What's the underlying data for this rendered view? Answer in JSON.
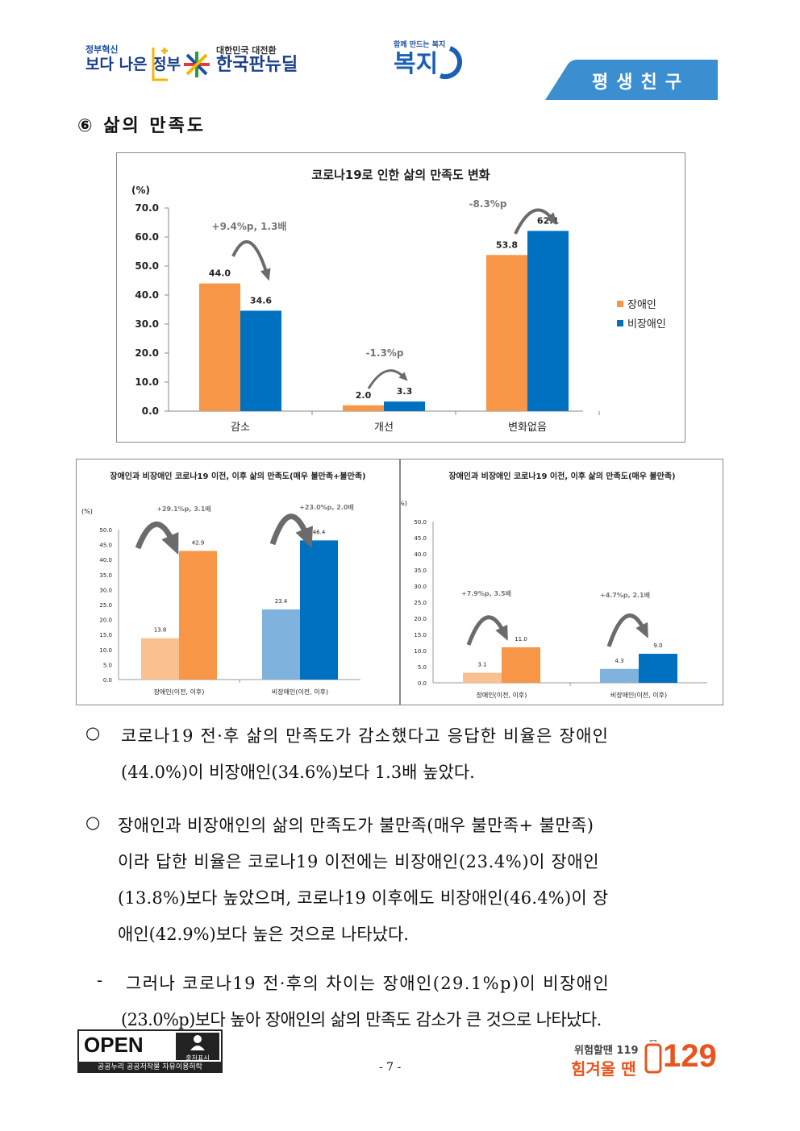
{
  "header": {
    "logo1_small": "정부혁신",
    "logo1_big": "보다 나은 정부",
    "logo2_small": "대한민국 대전환",
    "logo2_big": "한국판뉴딜",
    "logo3_small": "함께 만드는 복지",
    "logo3_big": "복지",
    "tab_label": "평생친구"
  },
  "section_title": "⑥ 삶의 만족도",
  "colors": {
    "disabled": "#F79646",
    "nondisabled": "#0070C0",
    "before_disabled": "#FAC090",
    "before_nondisabled": "#7FB2DC",
    "tab": "#3B8FD1"
  },
  "chart_data": [
    {
      "type": "bar",
      "title": "코로나19로 인한 삶의 만족도 변화",
      "ylabel": "(%)",
      "ylim": [
        0,
        70
      ],
      "yticks": [
        "0.0",
        "10.0",
        "20.0",
        "30.0",
        "40.0",
        "50.0",
        "60.0",
        "70.0"
      ],
      "categories": [
        "감소",
        "개선",
        "변화없음"
      ],
      "series": [
        {
          "name": "장애인",
          "values": [
            44.0,
            2.0,
            53.8
          ],
          "labels": [
            "44.0",
            "2.0",
            "53.8"
          ]
        },
        {
          "name": "비장애인",
          "values": [
            34.6,
            3.3,
            62.1
          ],
          "labels": [
            "34.6",
            "3.3",
            "62.1"
          ]
        }
      ],
      "annotations": [
        "+9.4%p,  1.3배",
        "-1.3%p",
        "-8.3%p"
      ],
      "legend": "right"
    },
    {
      "type": "bar",
      "title": "장애인과 비장애인 코로나19 이전, 이후 삶의 만족도(매우 불만족+불만족)",
      "ylabel": "(%)",
      "ylim": [
        0,
        50
      ],
      "yticks": [
        "0.0",
        "5.0",
        "10.0",
        "15.0",
        "20.0",
        "25.0",
        "30.0",
        "35.0",
        "40.0",
        "45.0",
        "50.0"
      ],
      "categories": [
        "장애인(이전, 이후)",
        "비장애인(이전, 이후)"
      ],
      "before": [
        13.8,
        23.4
      ],
      "after": [
        42.9,
        46.4
      ],
      "before_labels": [
        "13.8",
        "23.4"
      ],
      "after_labels": [
        "42.9",
        "46.4"
      ],
      "annotations": [
        "+29.1%p,  3.1배",
        "+23.0%p,  2.0배"
      ]
    },
    {
      "type": "bar",
      "title": "장애인과 비장애인 코로나19 이전, 이후 삶의 만족도(매우 불만족)",
      "ylabel": "(%)",
      "ylim": [
        0,
        50
      ],
      "yticks": [
        "0.0",
        "5.0",
        "10.0",
        "15.0",
        "20.0",
        "25.0",
        "30.0",
        "35.0",
        "40.0",
        "45.0",
        "50.0"
      ],
      "categories": [
        "장애인(이전, 이후)",
        "비장애인(이전, 이후)"
      ],
      "before": [
        3.1,
        4.3
      ],
      "after": [
        11.0,
        9.0
      ],
      "before_labels": [
        "3.1",
        "4.3"
      ],
      "after_labels": [
        "11.0",
        "9.0"
      ],
      "annotations": [
        "+7.9%p,  3.5배",
        "+4.7%p,  2.1배"
      ]
    }
  ],
  "paragraphs": [
    {
      "bullet": "○",
      "lines": [
        "코로나19 전·후 삶의 만족도가 감소했다고 응답한 비율은 장애인",
        "(44.0%)이 비장애인(34.6%)보다 1.3배 높았다."
      ]
    },
    {
      "bullet": "○",
      "lines": [
        "장애인과 비장애인의 삶의 만족도가 불만족(매우 불만족+ 불만족)",
        "이라 답한 비율은 코로나19 이전에는 비장애인(23.4%)이 장애인",
        "(13.8%)보다 높았으며, 코로나19 이후에도 비장애인(46.4%)이 장",
        "애인(42.9%)보다 높은 것으로 나타났다."
      ]
    },
    {
      "bullet": "-",
      "lines": [
        "그러나 코로나19 전·후의 차이는 장애인(29.1%p)이 비장애인",
        "(23.0%p)보다 높아 장애인의 삶의 만족도 감소가 큰 것으로 나타났다."
      ]
    }
  ],
  "footer": {
    "open_label": "OPEN",
    "source_label": "출처표시",
    "kogl_text": "공공누리  공공저작물 자유이용허락",
    "page_number": "- 7 -",
    "hotline_small": "위험할땐 119",
    "hotline_big": "힘겨울 땐",
    "hotline_number": "129"
  }
}
